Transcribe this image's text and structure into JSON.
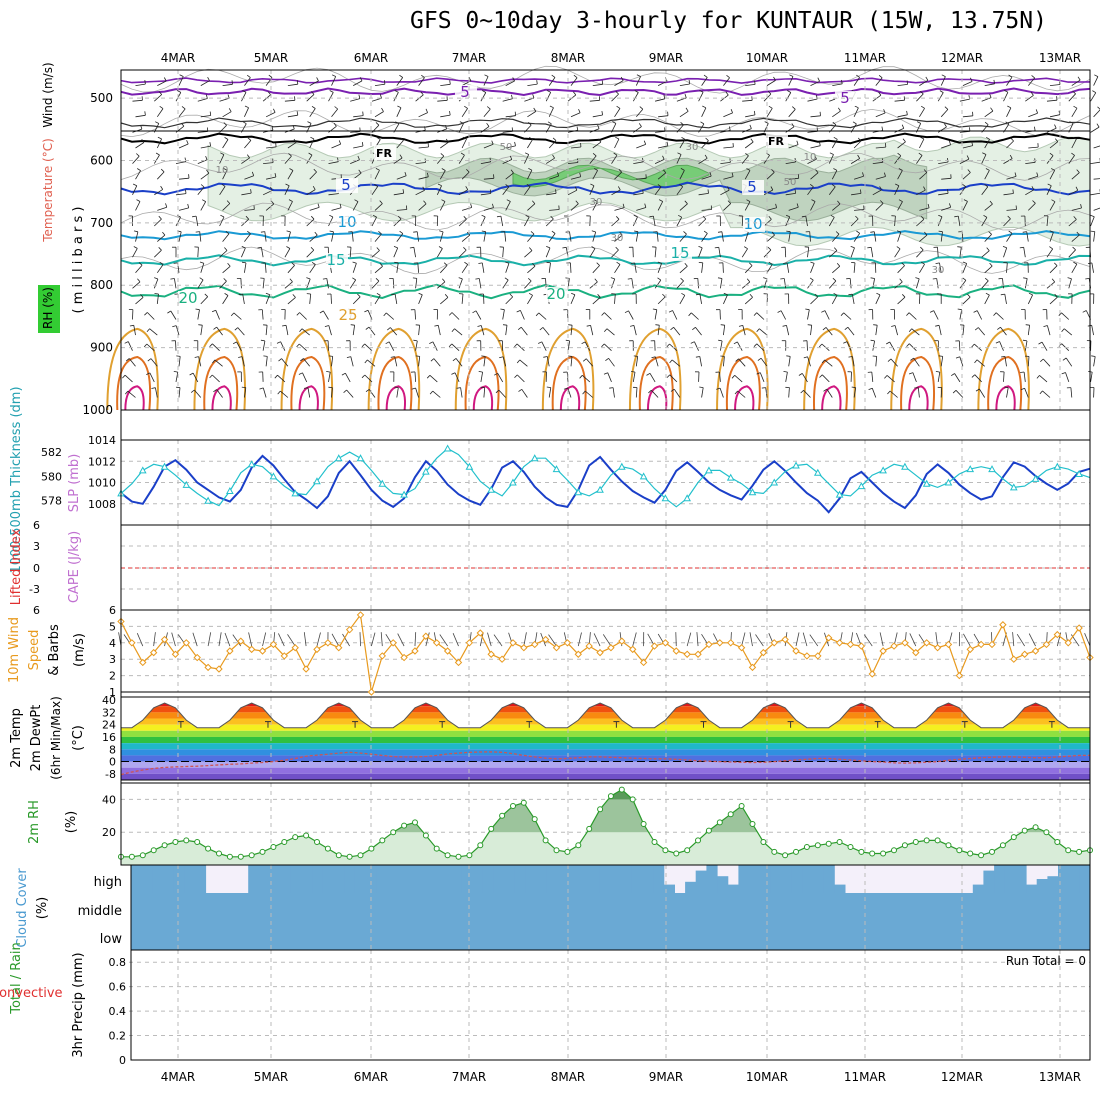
{
  "title": "GFS 0~10day 3-hourly for KUNTAUR (15W, 13.75N)",
  "dates": [
    "4MAR",
    "5MAR",
    "6MAR",
    "7MAR",
    "8MAR",
    "9MAR",
    "10MAR",
    "11MAR",
    "12MAR",
    "13MAR"
  ],
  "colors": {
    "thick": "#22c0cc",
    "slp": "#1a3fc8",
    "wind": "#e89a1e",
    "rh_fill": "#d8ecd8",
    "rh_line": "#2a9a2a",
    "cloud": "#6aa9d4",
    "li": "#e03030",
    "cape": "#c070d0",
    "temp_line": "#555555",
    "dew_line": "#cc5555"
  },
  "chart_data": [
    {
      "panel": "upper-air",
      "type": "contour",
      "ylabel_parts": [
        "Temperature (°C)",
        "Wind (m/s)",
        "RH (%)",
        "( m i l l i b a r s )"
      ],
      "yticks": [
        500,
        600,
        700,
        800,
        900,
        1000
      ],
      "ylim": [
        455,
        1000
      ],
      "contour_labels": [
        {
          "text": "5",
          "color": "#7a20b0"
        },
        {
          "text": "5",
          "color": "#7a20b0"
        },
        {
          "text": "FR",
          "color": "#000000"
        },
        {
          "text": "FR",
          "color": "#000000"
        },
        {
          "text": "5",
          "color": "#1a3fc8"
        },
        {
          "text": "5",
          "color": "#1a3fc8"
        },
        {
          "text": "10",
          "color": "#1a9ad4"
        },
        {
          "text": "10",
          "color": "#1a9ad4"
        },
        {
          "text": "15",
          "color": "#1ab0a8"
        },
        {
          "text": "15",
          "color": "#1ab0a8"
        },
        {
          "text": "20",
          "color": "#1ab080"
        },
        {
          "text": "20",
          "color": "#1ab080"
        },
        {
          "text": "25",
          "color": "#e0a030"
        }
      ],
      "rh_labels": [
        "10",
        "50",
        "30",
        "10",
        "50",
        "30",
        "30",
        "30"
      ],
      "levels": {
        "m5_violet": 490,
        "freezing": 565,
        "t5": 645,
        "t10": 720,
        "t15": 760,
        "t20": 810,
        "t25": 855
      }
    },
    {
      "panel": "thickness-slp",
      "type": "line",
      "ylabel_left": "1000-500mb Thickness (dm)",
      "ylabel_right": "SLP (mb)",
      "yticks_left": [
        578,
        580,
        582
      ],
      "yticks_right": [
        1008,
        1010,
        1012,
        1014
      ],
      "ylim_left": [
        576,
        583
      ],
      "ylim_right": [
        1006,
        1014
      ],
      "series": [
        {
          "name": "Thickness",
          "axis": "left",
          "values": [
            578.6,
            579.4,
            580.5,
            581.0,
            580.8,
            580.1,
            579.3,
            578.6,
            578.0,
            577.6,
            578.8,
            580.3,
            581.0,
            580.8,
            580.0,
            579.2,
            578.6,
            578.5,
            579.6,
            580.8,
            581.5,
            582.0,
            581.5,
            580.5,
            579.4,
            578.6,
            578.5,
            579.0,
            580.4,
            581.5,
            582.3,
            581.8,
            580.8,
            579.6,
            578.9,
            578.4,
            579.5,
            580.8,
            581.5,
            581.5,
            580.6,
            579.7,
            578.7,
            578.4,
            578.9,
            580.1,
            580.8,
            580.6,
            580.0,
            579.0,
            578.2,
            577.5,
            578.2,
            579.5,
            580.5,
            580.5,
            579.9,
            579.4,
            578.7,
            578.6,
            579.5,
            580.4,
            580.9,
            581.0,
            580.3,
            579.4,
            578.5,
            578.4,
            579.2,
            580.1,
            580.5,
            581.0,
            580.8,
            580.1,
            579.4,
            579.1,
            579.5,
            580.2,
            580.6,
            580.8,
            580.6,
            579.8,
            579.1,
            579.2,
            579.8,
            580.5,
            580.8,
            580.6,
            580.2,
            579.9
          ]
        },
        {
          "name": "SLP",
          "axis": "right",
          "values": [
            1009.0,
            1008.2,
            1008.0,
            1009.6,
            1011.5,
            1012.1,
            1011.2,
            1010.0,
            1009.3,
            1008.6,
            1008.2,
            1009.3,
            1011.4,
            1012.5,
            1011.6,
            1010.3,
            1009.1,
            1008.4,
            1007.6,
            1008.7,
            1010.9,
            1012.0,
            1010.7,
            1009.3,
            1008.3,
            1007.7,
            1008.5,
            1010.5,
            1012.0,
            1011.1,
            1009.8,
            1008.9,
            1008.3,
            1007.9,
            1009.4,
            1011.4,
            1012.0,
            1011.0,
            1009.6,
            1008.6,
            1007.9,
            1007.7,
            1009.3,
            1011.6,
            1012.4,
            1011.2,
            1010.1,
            1009.2,
            1008.6,
            1008.1,
            1009.3,
            1011.1,
            1011.9,
            1011.0,
            1010.0,
            1009.3,
            1008.8,
            1008.4,
            1009.7,
            1011.2,
            1012.0,
            1011.1,
            1010.0,
            1009.0,
            1008.3,
            1007.2,
            1008.5,
            1010.4,
            1011.0,
            1010.0,
            1009.0,
            1008.2,
            1007.6,
            1008.8,
            1010.8,
            1011.7,
            1010.9,
            1009.8,
            1009.0,
            1008.4,
            1008.7,
            1010.5,
            1011.9,
            1011.5,
            1010.6,
            1009.9,
            1009.3,
            1009.9,
            1011.0,
            1011.3
          ]
        }
      ]
    },
    {
      "panel": "lifted-cape",
      "type": "line",
      "ylabel_left": "Lifted Index",
      "ylabel_right": "CAPE (J/kg)",
      "yticks": [
        "6",
        "3",
        "0",
        "-3",
        "6"
      ],
      "ylim": [
        -6,
        6
      ]
    },
    {
      "panel": "wind10m",
      "type": "line",
      "ylabel_parts": [
        "10m Wind",
        "Speed",
        "& Barbs",
        "(m/s)"
      ],
      "yticks": [
        1,
        2,
        3,
        4,
        5,
        6
      ],
      "ylim": [
        1,
        6
      ],
      "series": [
        {
          "name": "Wind speed",
          "values": [
            5.3,
            4.0,
            2.8,
            3.4,
            4.2,
            3.3,
            4.0,
            3.1,
            2.5,
            2.4,
            3.5,
            4.1,
            3.6,
            3.5,
            3.9,
            3.2,
            3.7,
            2.4,
            3.6,
            4.0,
            3.7,
            4.8,
            5.7,
            1.0,
            3.2,
            4.0,
            3.1,
            3.5,
            4.4,
            4.0,
            3.5,
            2.8,
            4.0,
            4.6,
            3.3,
            3.0,
            4.0,
            3.7,
            3.9,
            4.2,
            3.7,
            4.0,
            3.3,
            3.8,
            3.4,
            3.7,
            4.1,
            3.6,
            2.8,
            3.8,
            4.0,
            3.5,
            3.3,
            3.3,
            3.9,
            4.0,
            4.0,
            3.7,
            2.5,
            3.4,
            4.0,
            4.2,
            3.5,
            3.2,
            3.2,
            4.3,
            4.0,
            3.9,
            3.8,
            2.1,
            3.5,
            3.8,
            4.0,
            3.4,
            4.0,
            3.7,
            3.9,
            2.0,
            3.6,
            3.9,
            3.9,
            5.1,
            3.0,
            3.3,
            3.5,
            3.9,
            4.5,
            4.0,
            4.9,
            3.1
          ]
        }
      ]
    },
    {
      "panel": "temperature",
      "type": "area",
      "ylabel_parts": [
        "2m Temp",
        "2m DewPt",
        "(6hr Min/Max)",
        "(°C)"
      ],
      "yticks": [
        "40",
        "32",
        "24",
        "16",
        "8",
        "0",
        "-8"
      ],
      "ylim": [
        -12,
        42
      ],
      "bands": [
        "#e01818",
        "#f05010",
        "#f88a10",
        "#fcc020",
        "#f4f020",
        "#90e040",
        "#30c040",
        "#20b8c8",
        "#3090e0",
        "#5070e0",
        "#b0a8f0",
        "#9070e0",
        "#7050c8"
      ],
      "daily_max": 38,
      "daily_min": 22,
      "dewpoint": [
        -8.5,
        -6.8,
        -5.5,
        -4.5,
        -3.8,
        -3.5,
        -3.2,
        -3.0,
        -2.6,
        -2.2,
        -1.8,
        -1.5,
        -1.0,
        -0.6,
        0.0,
        0.8,
        2.0,
        3.5,
        4.2,
        4.8,
        5.5,
        6.0,
        5.5,
        4.8,
        4.0,
        3.2,
        3.0,
        3.0,
        3.3,
        4.0,
        5.0,
        5.5,
        6.0,
        6.2,
        6.3,
        6.0,
        5.2,
        4.0,
        3.0,
        2.2,
        1.8,
        2.0,
        2.5,
        3.0,
        3.0,
        2.8,
        2.5,
        2.2,
        2.0,
        1.8,
        1.8,
        1.5,
        1.0,
        0.5,
        0.2,
        0.0,
        -0.3,
        -0.5,
        -0.6,
        -0.5,
        0.0,
        0.5,
        1.0,
        1.5,
        2.0,
        2.0,
        1.5,
        1.0,
        0.5,
        0.0,
        -0.3,
        -0.8,
        -1.0,
        -0.8,
        -0.4,
        0.0,
        0.8,
        1.5,
        2.0,
        2.5,
        2.8,
        3.0,
        3.0,
        2.7,
        2.5,
        2.5,
        3.0,
        3.5,
        4.0,
        4.0
      ]
    },
    {
      "panel": "rh2m",
      "type": "area",
      "ylabel_parts": [
        "2m RH",
        "(%)"
      ],
      "yticks": [
        20,
        40
      ],
      "ylim": [
        0,
        50
      ],
      "series": [
        {
          "name": "2m RH",
          "values": [
            5,
            5,
            6,
            9,
            12,
            14,
            15,
            14,
            10,
            7,
            5,
            5,
            6,
            8,
            11,
            14,
            17,
            18,
            14,
            10,
            6,
            5,
            6,
            10,
            15,
            20,
            24,
            26,
            18,
            10,
            6,
            5,
            6,
            12,
            22,
            30,
            36,
            38,
            28,
            15,
            9,
            8,
            12,
            22,
            34,
            42,
            46,
            40,
            25,
            14,
            9,
            7,
            9,
            15,
            21,
            26,
            31,
            36,
            25,
            14,
            8,
            6,
            8,
            11,
            12,
            13,
            14,
            11,
            8,
            7,
            7,
            9,
            12,
            14,
            15,
            15,
            12,
            9,
            7,
            6,
            8,
            12,
            17,
            21,
            23,
            20,
            14,
            9,
            8,
            9
          ]
        }
      ]
    },
    {
      "panel": "cloud",
      "type": "bar",
      "ylabel_parts": [
        "Cloud Cover",
        "(%)"
      ],
      "yticks": [
        "high",
        "middle",
        "low"
      ],
      "high_values": [
        100,
        100,
        100,
        100,
        100,
        100,
        100,
        0,
        0,
        0,
        0,
        100,
        100,
        100,
        100,
        100,
        100,
        100,
        100,
        100,
        100,
        100,
        100,
        100,
        100,
        100,
        100,
        100,
        100,
        100,
        100,
        100,
        100,
        100,
        100,
        100,
        100,
        100,
        100,
        100,
        100,
        100,
        100,
        100,
        100,
        100,
        100,
        100,
        100,
        100,
        30,
        0,
        40,
        80,
        100,
        60,
        30,
        100,
        100,
        100,
        100,
        100,
        100,
        100,
        100,
        100,
        30,
        0,
        0,
        0,
        0,
        0,
        0,
        0,
        0,
        0,
        0,
        0,
        0,
        30,
        80,
        100,
        100,
        100,
        30,
        50,
        60,
        100,
        100,
        100
      ]
    },
    {
      "panel": "precip",
      "type": "bar",
      "ylabel_parts": [
        "Total / Rain",
        "Convective",
        "3hr Precip (mm)"
      ],
      "yticks": [
        "0",
        "0.2",
        "0.4",
        "0.6",
        "0.8"
      ],
      "ylim": [
        0,
        0.9
      ],
      "run_total": "Run Total = 0"
    }
  ]
}
